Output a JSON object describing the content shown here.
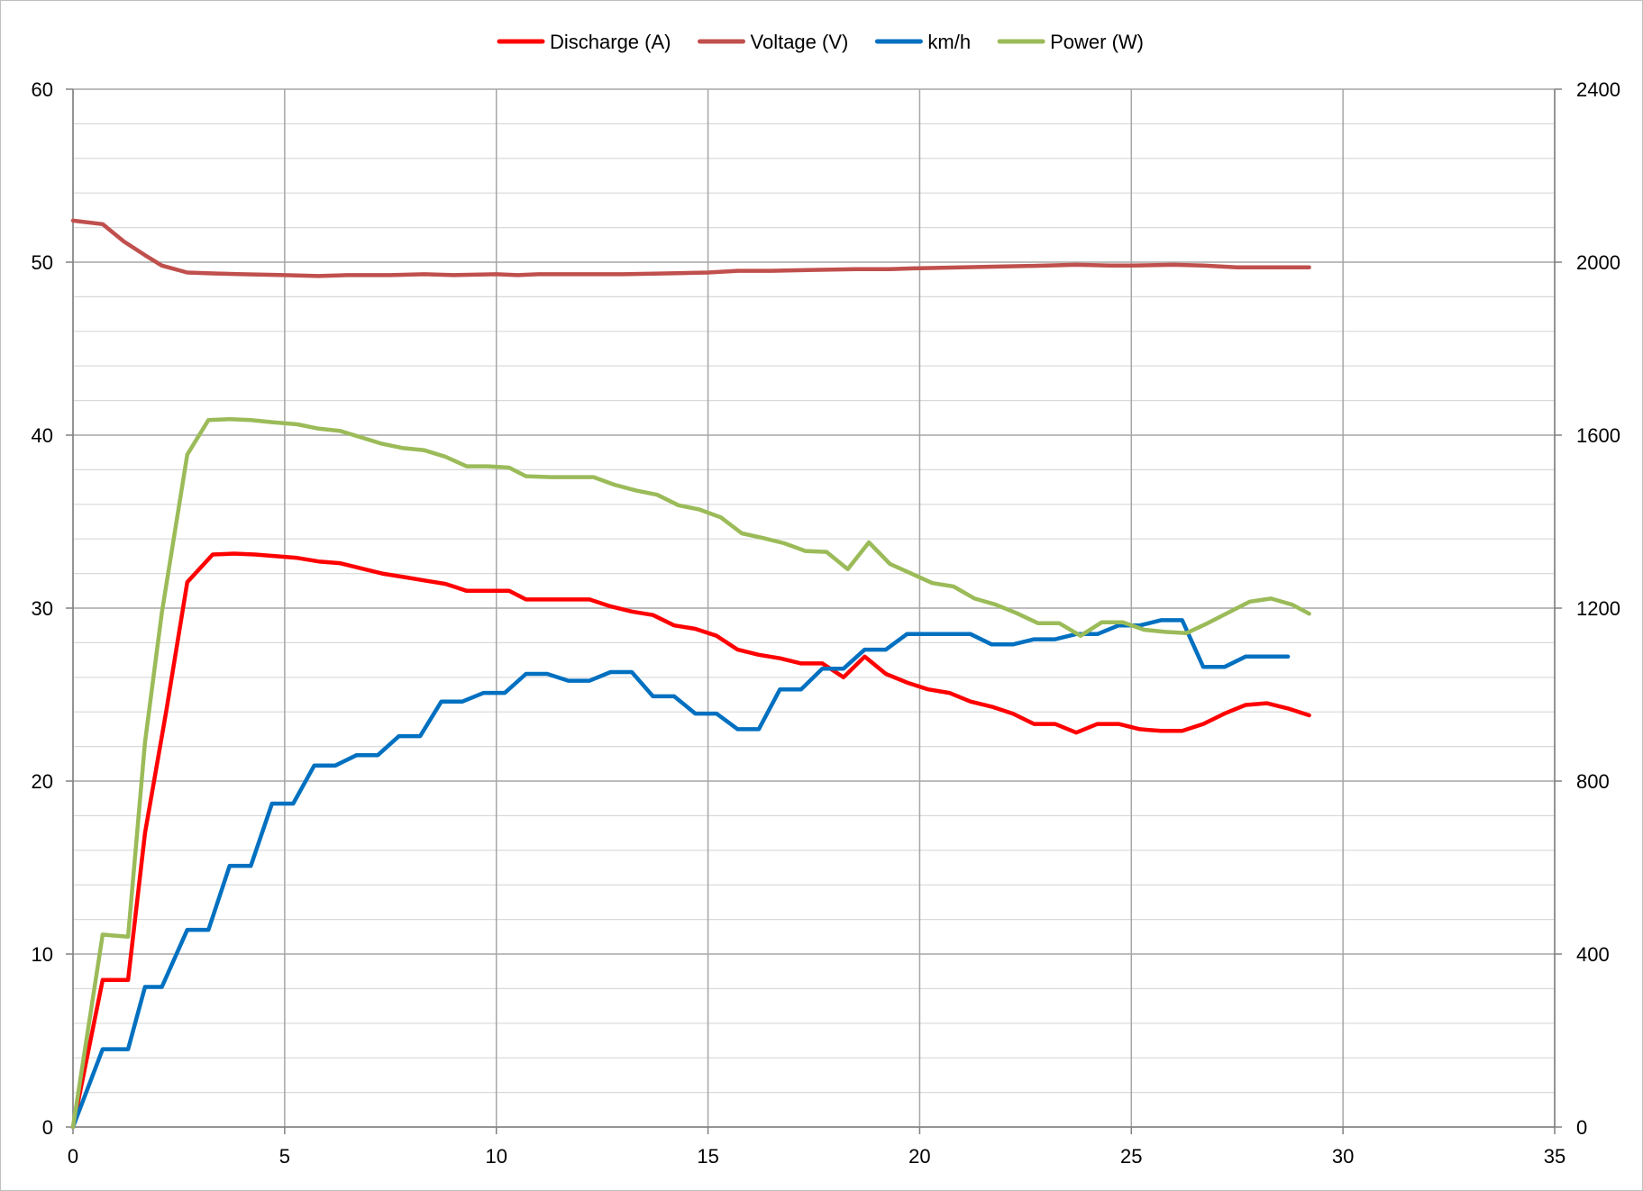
{
  "chart_data": {
    "type": "line",
    "x_axis": {
      "min": 0,
      "max": 35,
      "ticks": [
        0,
        5,
        10,
        15,
        20,
        25,
        30,
        35
      ],
      "tick_labels": [
        "0",
        "5",
        "10",
        "15",
        "20",
        "25",
        "30",
        "35"
      ]
    },
    "y_axis_left": {
      "min": 0,
      "max": 60,
      "ticks": [
        0,
        10,
        20,
        30,
        40,
        50,
        60
      ],
      "tick_labels": [
        "0",
        "10",
        "20",
        "30",
        "40",
        "50",
        "60"
      ],
      "minor_step": 2
    },
    "y_axis_right": {
      "min": 0,
      "max": 2400,
      "ticks": [
        0,
        400,
        800,
        1200,
        1600,
        2000,
        2400
      ],
      "tick_labels": [
        "0",
        "400",
        "800",
        "1200",
        "1600",
        "2000",
        "2400"
      ]
    },
    "grid": true,
    "legend_position": "top",
    "series": [
      {
        "name": "Discharge (A)",
        "color": "#ff0000",
        "axis": "left",
        "points": [
          [
            0,
            0
          ],
          [
            0.7,
            8.5
          ],
          [
            1.3,
            8.5
          ],
          [
            1.7,
            17
          ],
          [
            2.2,
            24
          ],
          [
            2.7,
            31.5
          ],
          [
            3.3,
            33.1
          ],
          [
            3.8,
            33.15
          ],
          [
            4.3,
            33.1
          ],
          [
            4.8,
            33
          ],
          [
            5.3,
            32.9
          ],
          [
            5.8,
            32.7
          ],
          [
            6.3,
            32.6
          ],
          [
            6.8,
            32.3
          ],
          [
            7.3,
            32
          ],
          [
            7.8,
            31.8
          ],
          [
            8.3,
            31.6
          ],
          [
            8.8,
            31.4
          ],
          [
            9.3,
            31
          ],
          [
            9.8,
            31
          ],
          [
            10.3,
            31
          ],
          [
            10.7,
            30.5
          ],
          [
            11.2,
            30.5
          ],
          [
            11.7,
            30.5
          ],
          [
            12.2,
            30.5
          ],
          [
            12.7,
            30.1
          ],
          [
            13.2,
            29.8
          ],
          [
            13.7,
            29.6
          ],
          [
            14.2,
            29
          ],
          [
            14.7,
            28.8
          ],
          [
            15.2,
            28.4
          ],
          [
            15.7,
            27.6
          ],
          [
            16.2,
            27.3
          ],
          [
            16.7,
            27.1
          ],
          [
            17.2,
            26.8
          ],
          [
            17.7,
            26.8
          ],
          [
            18.2,
            26
          ],
          [
            18.7,
            27.2
          ],
          [
            19.2,
            26.2
          ],
          [
            19.7,
            25.7
          ],
          [
            20.2,
            25.3
          ],
          [
            20.7,
            25.1
          ],
          [
            21.2,
            24.6
          ],
          [
            21.7,
            24.3
          ],
          [
            22.2,
            23.9
          ],
          [
            22.7,
            23.3
          ],
          [
            23.2,
            23.3
          ],
          [
            23.7,
            22.8
          ],
          [
            24.2,
            23.3
          ],
          [
            24.7,
            23.3
          ],
          [
            25.2,
            23
          ],
          [
            25.7,
            22.9
          ],
          [
            26.2,
            22.9
          ],
          [
            26.7,
            23.3
          ],
          [
            27.2,
            23.9
          ],
          [
            27.7,
            24.4
          ],
          [
            28.2,
            24.5
          ],
          [
            28.7,
            24.2
          ],
          [
            29.2,
            23.8
          ]
        ]
      },
      {
        "name": "Voltage (V)",
        "color": "#c0504d",
        "axis": "left",
        "points": [
          [
            0,
            52.4
          ],
          [
            0.7,
            52.2
          ],
          [
            1.2,
            51.2
          ],
          [
            1.7,
            50.4
          ],
          [
            2.1,
            49.8
          ],
          [
            2.7,
            49.4
          ],
          [
            3.3,
            49.35
          ],
          [
            4,
            49.3
          ],
          [
            5,
            49.25
          ],
          [
            5.8,
            49.2
          ],
          [
            6.5,
            49.25
          ],
          [
            7.5,
            49.25
          ],
          [
            8.3,
            49.3
          ],
          [
            9,
            49.25
          ],
          [
            10,
            49.3
          ],
          [
            10.5,
            49.25
          ],
          [
            11,
            49.3
          ],
          [
            12,
            49.3
          ],
          [
            13,
            49.3
          ],
          [
            14,
            49.35
          ],
          [
            15,
            49.4
          ],
          [
            15.7,
            49.5
          ],
          [
            16.5,
            49.5
          ],
          [
            17.5,
            49.55
          ],
          [
            18.5,
            49.6
          ],
          [
            19.3,
            49.6
          ],
          [
            20,
            49.65
          ],
          [
            21,
            49.7
          ],
          [
            22,
            49.75
          ],
          [
            23,
            49.8
          ],
          [
            23.7,
            49.85
          ],
          [
            24.5,
            49.8
          ],
          [
            25,
            49.8
          ],
          [
            26,
            49.85
          ],
          [
            26.7,
            49.8
          ],
          [
            27.5,
            49.7
          ],
          [
            28,
            49.7
          ],
          [
            29.2,
            49.7
          ]
        ]
      },
      {
        "name": "km/h",
        "color": "#0070c0",
        "axis": "left",
        "points": [
          [
            0,
            0
          ],
          [
            0.7,
            4.5
          ],
          [
            1.3,
            4.5
          ],
          [
            1.7,
            8.1
          ],
          [
            2.1,
            8.1
          ],
          [
            2.7,
            11.4
          ],
          [
            3.2,
            11.4
          ],
          [
            3.7,
            15.1
          ],
          [
            4.2,
            15.1
          ],
          [
            4.7,
            18.7
          ],
          [
            5.2,
            18.7
          ],
          [
            5.7,
            20.9
          ],
          [
            6.2,
            20.9
          ],
          [
            6.7,
            21.5
          ],
          [
            7.2,
            21.5
          ],
          [
            7.7,
            22.6
          ],
          [
            8.2,
            22.6
          ],
          [
            8.7,
            24.6
          ],
          [
            9.2,
            24.6
          ],
          [
            9.7,
            25.1
          ],
          [
            10.2,
            25.1
          ],
          [
            10.7,
            26.2
          ],
          [
            11.2,
            26.2
          ],
          [
            11.7,
            25.8
          ],
          [
            12.2,
            25.8
          ],
          [
            12.7,
            26.3
          ],
          [
            13.2,
            26.3
          ],
          [
            13.7,
            24.9
          ],
          [
            14.2,
            24.9
          ],
          [
            14.7,
            23.9
          ],
          [
            15.2,
            23.9
          ],
          [
            15.7,
            23
          ],
          [
            16.2,
            23
          ],
          [
            16.7,
            25.3
          ],
          [
            17.2,
            25.3
          ],
          [
            17.7,
            26.5
          ],
          [
            18.2,
            26.5
          ],
          [
            18.7,
            27.6
          ],
          [
            19.2,
            27.6
          ],
          [
            19.7,
            28.5
          ],
          [
            20.2,
            28.5
          ],
          [
            20.7,
            28.5
          ],
          [
            21.2,
            28.5
          ],
          [
            21.7,
            27.9
          ],
          [
            22.2,
            27.9
          ],
          [
            22.7,
            28.2
          ],
          [
            23.2,
            28.2
          ],
          [
            23.7,
            28.5
          ],
          [
            24.2,
            28.5
          ],
          [
            24.7,
            29
          ],
          [
            25.2,
            29
          ],
          [
            25.7,
            29.3
          ],
          [
            26.2,
            29.3
          ],
          [
            26.7,
            26.6
          ],
          [
            27.2,
            26.6
          ],
          [
            27.7,
            27.2
          ],
          [
            28.2,
            27.2
          ],
          [
            28.7,
            27.2
          ]
        ]
      },
      {
        "name": "Power (W)",
        "color": "#9bbb59",
        "axis": "right",
        "points": [
          [
            0,
            0
          ],
          [
            0.7,
            445
          ],
          [
            1.3,
            440
          ],
          [
            1.7,
            890
          ],
          [
            2.1,
            1190
          ],
          [
            2.7,
            1555
          ],
          [
            3.2,
            1635
          ],
          [
            3.7,
            1637
          ],
          [
            4.2,
            1635
          ],
          [
            4.7,
            1630
          ],
          [
            5.3,
            1625
          ],
          [
            5.8,
            1615
          ],
          [
            6.3,
            1610
          ],
          [
            6.8,
            1595
          ],
          [
            7.3,
            1580
          ],
          [
            7.8,
            1570
          ],
          [
            8.3,
            1565
          ],
          [
            8.8,
            1550
          ],
          [
            9.3,
            1528
          ],
          [
            9.8,
            1528
          ],
          [
            10.3,
            1525
          ],
          [
            10.7,
            1505
          ],
          [
            11.3,
            1503
          ],
          [
            11.8,
            1503
          ],
          [
            12.3,
            1503
          ],
          [
            12.8,
            1485
          ],
          [
            13.3,
            1472
          ],
          [
            13.8,
            1462
          ],
          [
            14.3,
            1438
          ],
          [
            14.8,
            1428
          ],
          [
            15.3,
            1410
          ],
          [
            15.8,
            1373
          ],
          [
            16.3,
            1362
          ],
          [
            16.8,
            1350
          ],
          [
            17.3,
            1332
          ],
          [
            17.8,
            1330
          ],
          [
            18.3,
            1290
          ],
          [
            18.8,
            1352
          ],
          [
            19.3,
            1302
          ],
          [
            19.8,
            1280
          ],
          [
            20.3,
            1258
          ],
          [
            20.8,
            1250
          ],
          [
            21.3,
            1222
          ],
          [
            21.8,
            1208
          ],
          [
            22.3,
            1188
          ],
          [
            22.8,
            1165
          ],
          [
            23.3,
            1165
          ],
          [
            23.8,
            1136
          ],
          [
            24.3,
            1167
          ],
          [
            24.8,
            1167
          ],
          [
            25.3,
            1150
          ],
          [
            25.8,
            1145
          ],
          [
            26.3,
            1142
          ],
          [
            26.8,
            1165
          ],
          [
            27.3,
            1190
          ],
          [
            27.8,
            1215
          ],
          [
            28.3,
            1222
          ],
          [
            28.8,
            1208
          ],
          [
            29.2,
            1187
          ]
        ]
      }
    ]
  }
}
